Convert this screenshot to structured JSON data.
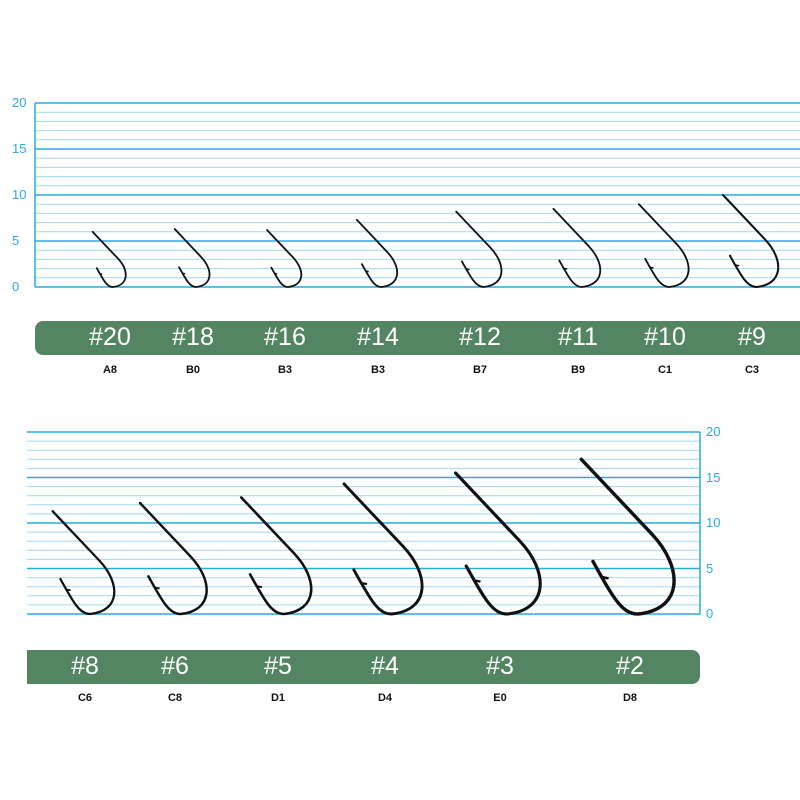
{
  "colors": {
    "grid": "#9fdcf3",
    "axis": "#29abe2",
    "band": "#548563",
    "hook": "#111111"
  },
  "panels": [
    {
      "axis_ticks": [
        "0",
        "5",
        "10",
        "15",
        "20"
      ],
      "axis_side": "left",
      "hooks": [
        {
          "size": "#20",
          "code": "A8",
          "height": 6
        },
        {
          "size": "#18",
          "code": "B0",
          "height": 6.3
        },
        {
          "size": "#16",
          "code": "B3",
          "height": 6.2
        },
        {
          "size": "#14",
          "code": "B3",
          "height": 7.3
        },
        {
          "size": "#12",
          "code": "B7",
          "height": 8.2
        },
        {
          "size": "#11",
          "code": "B9",
          "height": 8.5
        },
        {
          "size": "#10",
          "code": "C1",
          "height": 9
        },
        {
          "size": "#9",
          "code": "C3",
          "height": 10
        }
      ]
    },
    {
      "axis_ticks": [
        "0",
        "5",
        "10",
        "15",
        "20"
      ],
      "axis_side": "right",
      "hooks": [
        {
          "size": "#8",
          "code": "C6",
          "height": 11.3
        },
        {
          "size": "#6",
          "code": "C8",
          "height": 12.2
        },
        {
          "size": "#5",
          "code": "D1",
          "height": 12.8
        },
        {
          "size": "#4",
          "code": "D4",
          "height": 14.3
        },
        {
          "size": "#3",
          "code": "E0",
          "height": 15.5
        },
        {
          "size": "#2",
          "code": "D8",
          "height": 17
        }
      ]
    }
  ]
}
